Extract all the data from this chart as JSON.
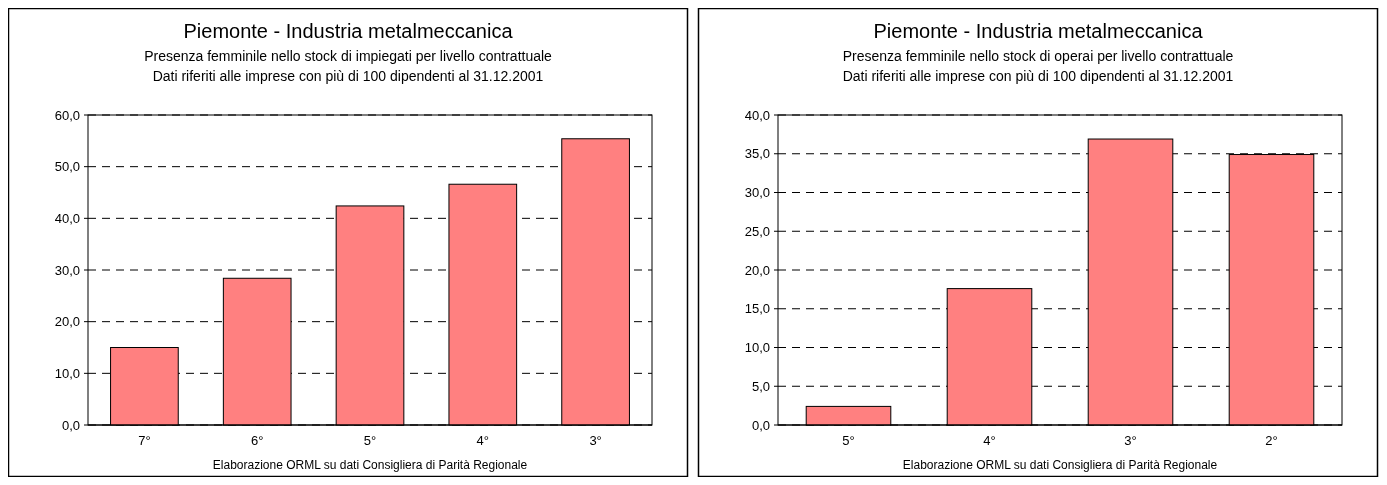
{
  "chart_data": [
    {
      "type": "bar",
      "title": "Piemonte - Industria metalmeccanica",
      "subtitle": "Presenza femminile nello stock di impiegati per livello contrattuale\nDati riferiti alle imprese con più di 100 dipendenti al 31.12.2001",
      "categories": [
        "7°",
        "6°",
        "5°",
        "4°",
        "3°"
      ],
      "values": [
        15.0,
        28.4,
        42.4,
        46.6,
        55.4
      ],
      "color": "#ff8080",
      "ylim": [
        0,
        60
      ],
      "yticks": [
        {
          "value": 0,
          "label": "0,0"
        },
        {
          "value": 10,
          "label": "10,0"
        },
        {
          "value": 20,
          "label": "20,0"
        },
        {
          "value": 30,
          "label": "30,0"
        },
        {
          "value": 40,
          "label": "40,0"
        },
        {
          "value": 50,
          "label": "50,0"
        },
        {
          "value": 60,
          "label": "60,0"
        }
      ],
      "grid": "y",
      "line_style": "dashed",
      "annotations": [
        "Elaborazione ORML su dati Consigliera di Parità Regionale"
      ]
    },
    {
      "type": "bar",
      "title": "Piemonte - Industria metalmeccanica",
      "subtitle": "Presenza femminile nello stock di operai per livello contrattuale\nDati riferiti alle imprese con più di 100 dipendenti al 31.12.2001",
      "categories": [
        "5°",
        "4°",
        "3°",
        "2°"
      ],
      "values": [
        2.4,
        17.6,
        36.9,
        34.9
      ],
      "color": "#ff8080",
      "ylim": [
        0,
        40
      ],
      "yticks": [
        {
          "value": 0,
          "label": "0,0"
        },
        {
          "value": 5,
          "label": "5,0"
        },
        {
          "value": 10,
          "label": "10,0"
        },
        {
          "value": 15,
          "label": "15,0"
        },
        {
          "value": 20,
          "label": "20,0"
        },
        {
          "value": 25,
          "label": "25,0"
        },
        {
          "value": 30,
          "label": "30,0"
        },
        {
          "value": 35,
          "label": "35,0"
        },
        {
          "value": 40,
          "label": "40,0"
        }
      ],
      "grid": "y",
      "line_style": "dashed",
      "annotations": [
        "Elaborazione ORML su dati Consigliera di Parità Regionale"
      ]
    }
  ]
}
